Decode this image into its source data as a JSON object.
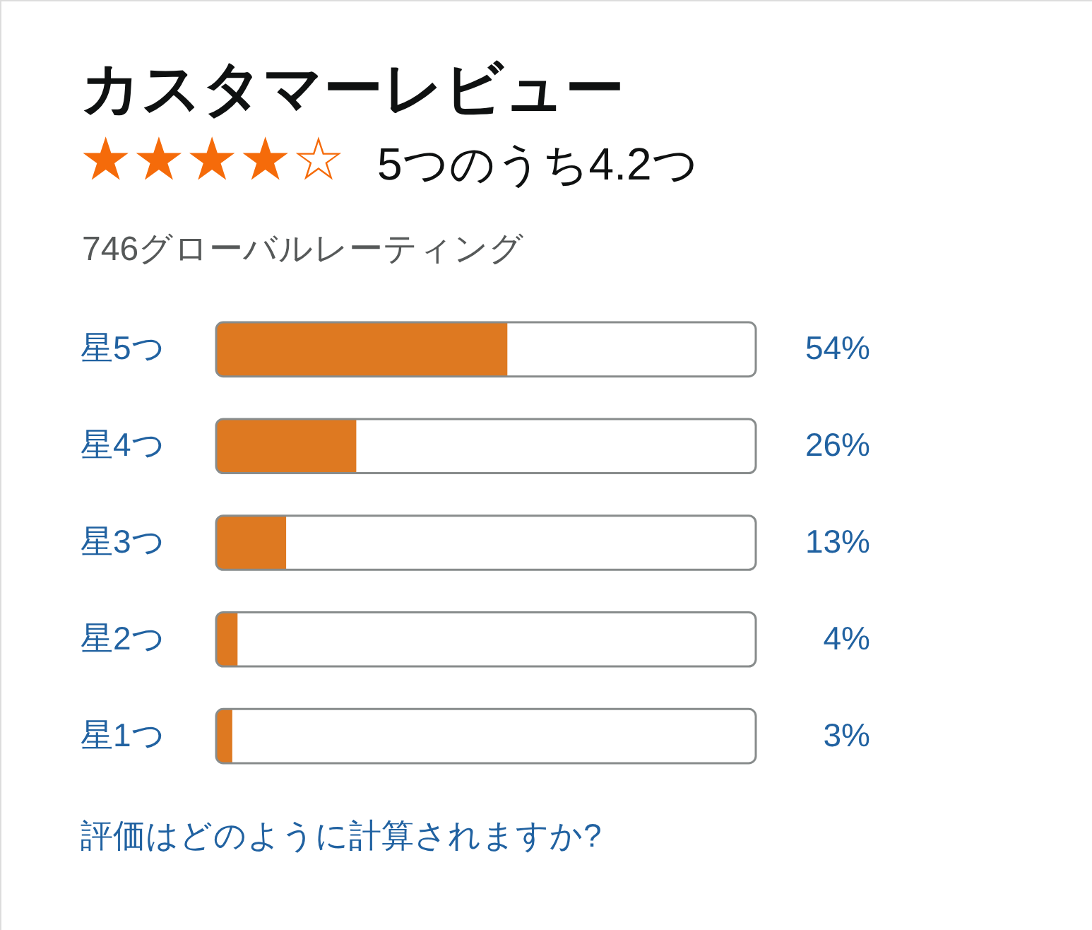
{
  "chart_data": {
    "type": "bar",
    "orientation": "horizontal",
    "title": "カスタマーレビュー",
    "subtitle": "5つのうち4.2つ",
    "categories": [
      "星5つ",
      "星4つ",
      "星3つ",
      "星2つ",
      "星1つ"
    ],
    "values": [
      54,
      26,
      13,
      4,
      3
    ],
    "value_labels": [
      "54%",
      "26%",
      "13%",
      "4%",
      "3%"
    ],
    "color": "#de7921",
    "xlim": [
      0,
      100
    ],
    "tick_labels": "y",
    "annotations": [
      "★★★★☆",
      "746グローバルレーティング",
      "評価はどのように計算されますか?"
    ]
  }
}
